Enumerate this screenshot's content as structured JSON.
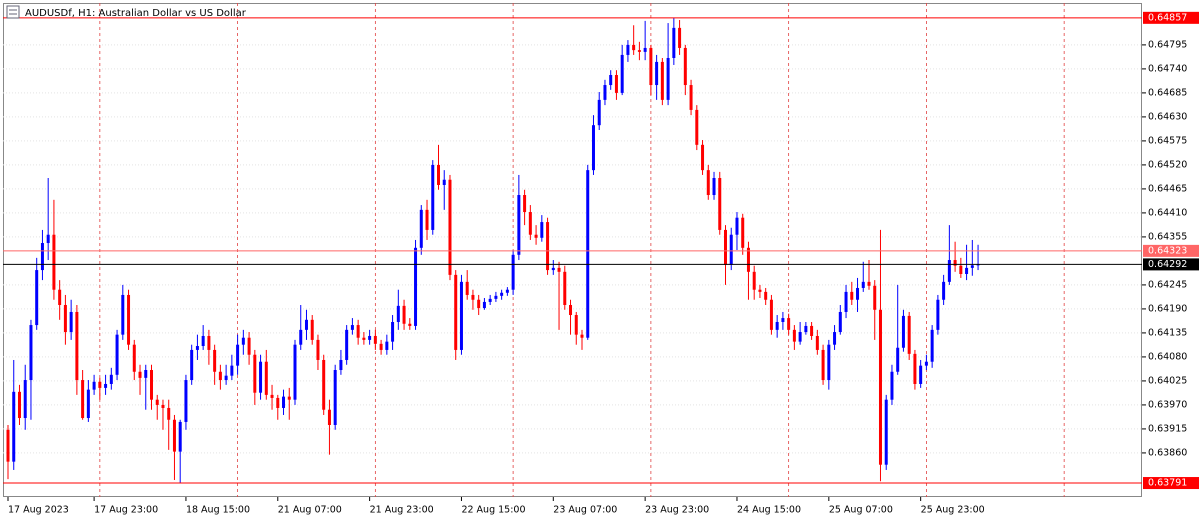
{
  "chart_data": {
    "type": "candlestick",
    "title": "AUDUSDf, H1:  Australian Dollar vs US Dollar",
    "up_color": "#0000ff",
    "down_color": "#ff0000",
    "grid": true,
    "ylim": [
      0.63759,
      0.64891
    ],
    "yticks": [
      {
        "value": 0.6386,
        "label": "0.63860"
      },
      0.63915,
      {
        "value": 0.6397,
        "label": "0.63970"
      },
      0.64025,
      {
        "value": 0.6408,
        "label": "0.64080"
      },
      0.64135,
      {
        "value": 0.6419,
        "label": "0.64190"
      },
      0.64245,
      0.64355,
      {
        "value": 0.6441,
        "label": "0.64410"
      },
      0.64465,
      {
        "value": 0.6452,
        "label": "0.64520"
      },
      0.64575,
      {
        "value": 0.6463,
        "label": "0.64630"
      },
      0.64685,
      {
        "value": 0.6474,
        "label": "0.64740"
      },
      0.64795
    ],
    "price_lines": [
      {
        "value": 0.64857,
        "color": "#ff0000"
      },
      {
        "value": 0.64323,
        "color": "#ff6666"
      },
      {
        "value": 0.64292,
        "color": "#000000"
      },
      {
        "value": 0.63791,
        "color": "#ff0000"
      }
    ],
    "categories": [
      "17 Aug 2023",
      null,
      null,
      null,
      null,
      null,
      null,
      null,
      null,
      null,
      null,
      null,
      null,
      null,
      null,
      "17 Aug 23:00",
      null,
      null,
      null,
      null,
      null,
      null,
      null,
      null,
      null,
      null,
      null,
      null,
      null,
      null,
      null,
      "18 Aug 15:00",
      null,
      null,
      null,
      null,
      null,
      null,
      null,
      null,
      null,
      null,
      null,
      null,
      null,
      null,
      null,
      "21 Aug 07:00",
      null,
      null,
      null,
      null,
      null,
      null,
      null,
      null,
      null,
      null,
      null,
      null,
      null,
      null,
      null,
      "21 Aug 23:00",
      null,
      null,
      null,
      null,
      null,
      null,
      null,
      null,
      null,
      null,
      null,
      null,
      null,
      null,
      null,
      "22 Aug 15:00",
      null,
      null,
      null,
      null,
      null,
      null,
      null,
      null,
      null,
      null,
      null,
      null,
      null,
      null,
      null,
      "23 Aug 07:00",
      null,
      null,
      null,
      null,
      null,
      null,
      null,
      null,
      null,
      null,
      null,
      null,
      null,
      null,
      null,
      "23 Aug 23:00",
      null,
      null,
      null,
      null,
      null,
      null,
      null,
      null,
      null,
      null,
      null,
      null,
      null,
      null,
      null,
      "24 Aug 15:00",
      null,
      null,
      null,
      null,
      null,
      null,
      null,
      null,
      null,
      null,
      null,
      null,
      null,
      null,
      null,
      "25 Aug 07:00",
      null,
      null,
      null,
      null,
      null,
      null,
      null,
      null,
      null,
      null,
      null,
      null,
      null,
      null,
      null,
      "25 Aug 23:00",
      null,
      null,
      null,
      null,
      null,
      null,
      null,
      null,
      null,
      null
    ],
    "open": [
      0.63913,
      0.6384,
      0.64,
      0.6394,
      0.64027,
      0.64153,
      0.64279,
      0.64341,
      0.6436,
      0.64234,
      0.64199,
      0.64137,
      0.64183,
      0.64027,
      0.6394,
      0.64005,
      0.64023,
      0.64009,
      0.64018,
      0.64039,
      0.64131,
      0.64222,
      0.64108,
      0.64046,
      0.64032,
      0.6405,
      0.63982,
      0.6397,
      0.63963,
      0.63936,
      0.63863,
      0.63931,
      0.64027,
      0.64096,
      0.64105,
      0.64128,
      0.64096,
      0.64046,
      0.64027,
      0.64037,
      0.6406,
      0.64108,
      0.64124,
      0.64085,
      0.63998,
      0.64069,
      0.63993,
      0.63986,
      0.63963,
      0.63989,
      0.63982,
      0.64108,
      0.64142,
      0.64165,
      0.64119,
      0.64073,
      0.63959,
      0.63924,
      0.6405,
      0.64073,
      0.64142,
      0.64153,
      0.64124,
      0.64119,
      0.64128,
      0.6411,
      0.64096,
      0.64115,
      0.6416,
      0.64197,
      0.64156,
      0.64151,
      0.6433,
      0.64417,
      0.64371,
      0.6452,
      0.64474,
      0.64486,
      0.64268,
      0.64096,
      0.64252,
      0.64222,
      0.64211,
      0.64192,
      0.64206,
      0.64213,
      0.6422,
      0.64227,
      0.64234,
      0.64314,
      0.64451,
      0.64412,
      0.6436,
      0.64353,
      0.64389,
      0.64279,
      0.64284,
      0.64275,
      0.64199,
      0.64176,
      0.64131,
      0.64124,
      0.64508,
      0.64611,
      0.64669,
      0.64703,
      0.64726,
      0.64685,
      0.64772,
      0.64795,
      0.64783,
      0.64779,
      0.64788,
      0.64703,
      0.64756,
      0.64669,
      0.64765,
      0.64834,
      0.64788,
      0.64703,
      0.64646,
      0.64566,
      0.64508,
      0.64451,
      0.6449,
      0.64371,
      0.64291,
      0.6436,
      0.64399,
      0.6433,
      0.64275,
      0.64234,
      0.64229,
      0.64211,
      0.64142,
      0.6416,
      0.64169,
      0.64142,
      0.64115,
      0.64137,
      0.64151,
      0.64128,
      0.64096,
      0.64027,
      0.64108,
      0.64137,
      0.64183,
      0.64229,
      0.64211,
      0.64238,
      0.64252,
      0.64243,
      0.64188,
      0.63833,
      0.63982,
      0.64046,
      0.64101,
      0.64174,
      0.64087,
      0.64018,
      0.6406,
      0.64069,
      0.64142,
      0.64211,
      0.64252,
      0.64302,
      0.64289,
      0.6427,
      0.64284,
      0.6429
    ],
    "high": [
      0.63924,
      0.64073,
      0.64016,
      0.64062,
      0.64165,
      0.64307,
      0.64371,
      0.6449,
      0.6444,
      0.64256,
      0.64222,
      0.64211,
      0.64199,
      0.6405,
      0.64027,
      0.64039,
      0.64032,
      0.64039,
      0.64055,
      0.64142,
      0.64245,
      0.64234,
      0.64119,
      0.64062,
      0.64062,
      0.64062,
      0.63993,
      0.63982,
      0.63982,
      0.63947,
      0.63936,
      0.64039,
      0.64108,
      0.64131,
      0.64153,
      0.64142,
      0.64108,
      0.64062,
      0.64062,
      0.64085,
      0.64131,
      0.64142,
      0.64137,
      0.64096,
      0.64085,
      0.64096,
      0.64016,
      0.63993,
      0.64005,
      0.64009,
      0.64119,
      0.64199,
      0.64188,
      0.64176,
      0.64131,
      0.64085,
      0.63982,
      0.64062,
      0.64096,
      0.64153,
      0.64169,
      0.64165,
      0.64137,
      0.64142,
      0.64142,
      0.64119,
      0.64131,
      0.64176,
      0.64234,
      0.64211,
      0.64169,
      0.64348,
      0.64428,
      0.6444,
      0.64531,
      0.64566,
      0.64508,
      0.64497,
      0.64279,
      0.64268,
      0.64279,
      0.64234,
      0.64222,
      0.64215,
      0.64222,
      0.64229,
      0.64234,
      0.6424,
      0.64325,
      0.64497,
      0.64463,
      0.64428,
      0.64382,
      0.64405,
      0.64399,
      0.64302,
      0.64298,
      0.64289,
      0.64211,
      0.64183,
      0.64142,
      0.6452,
      0.64634,
      0.64687,
      0.64715,
      0.64737,
      0.64737,
      0.64795,
      0.64806,
      0.6484,
      0.64802,
      0.6485,
      0.64795,
      0.64772,
      0.64765,
      0.64845,
      0.64857,
      0.64852,
      0.64795,
      0.64715,
      0.64657,
      0.64577,
      0.6452,
      0.64504,
      0.64504,
      0.64382,
      0.64376,
      0.64412,
      0.64408,
      0.64344,
      0.64289,
      0.64245,
      0.64238,
      0.64222,
      0.64176,
      0.64183,
      0.64179,
      0.64153,
      0.6416,
      0.6416,
      0.6416,
      0.64142,
      0.64108,
      0.64119,
      0.64153,
      0.64199,
      0.64245,
      0.64252,
      0.64261,
      0.64298,
      0.64302,
      0.64256,
      0.64371,
      0.63993,
      0.64062,
      0.64245,
      0.64188,
      0.64183,
      0.64096,
      0.64073,
      0.64085,
      0.64153,
      0.64222,
      0.64268,
      0.64382,
      0.64344,
      0.64307,
      0.64337,
      0.64348,
      0.64337
    ],
    "low": [
      0.638,
      0.63821,
      0.63924,
      0.63913,
      0.63936,
      0.64142,
      0.64256,
      0.64302,
      0.64211,
      0.64165,
      0.64108,
      0.64119,
      0.63993,
      0.63936,
      0.63931,
      0.63993,
      0.63982,
      0.63993,
      0.64005,
      0.64027,
      0.64119,
      0.64096,
      0.64027,
      0.63993,
      0.63959,
      0.63959,
      0.63936,
      0.63913,
      0.63867,
      0.63798,
      0.63791,
      0.63913,
      0.64016,
      0.64073,
      0.64096,
      0.64062,
      0.64016,
      0.64005,
      0.64016,
      0.64027,
      0.64039,
      0.64085,
      0.64062,
      0.6397,
      0.63982,
      0.63982,
      0.63959,
      0.63936,
      0.63947,
      0.63936,
      0.6397,
      0.64096,
      0.64119,
      0.64108,
      0.6405,
      0.63947,
      0.63856,
      0.63913,
      0.64039,
      0.64062,
      0.64131,
      0.64108,
      0.64108,
      0.64108,
      0.64096,
      0.64085,
      0.64085,
      0.64096,
      0.64142,
      0.64142,
      0.64142,
      0.64142,
      0.64314,
      0.64348,
      0.6436,
      0.64463,
      0.64417,
      0.64256,
      0.64073,
      0.64085,
      0.64211,
      0.64188,
      0.64176,
      0.64188,
      0.64199,
      0.64206,
      0.64211,
      0.6422,
      0.64222,
      0.64302,
      0.64382,
      0.64348,
      0.64337,
      0.64344,
      0.64268,
      0.64268,
      0.64142,
      0.64188,
      0.64131,
      0.64108,
      0.64096,
      0.64119,
      0.64497,
      0.646,
      0.64657,
      0.64692,
      0.64669,
      0.6468,
      0.64756,
      0.64772,
      0.6476,
      0.6476,
      0.6468,
      0.64669,
      0.64657,
      0.64657,
      0.64749,
      0.64772,
      0.6468,
      0.64634,
      0.64554,
      0.64497,
      0.6444,
      0.6444,
      0.6436,
      0.64245,
      0.64279,
      0.64325,
      0.64314,
      0.64211,
      0.64211,
      0.64215,
      0.64199,
      0.64131,
      0.64124,
      0.64142,
      0.64131,
      0.64096,
      0.64108,
      0.64131,
      0.64119,
      0.64085,
      0.64016,
      0.64005,
      0.64096,
      0.64131,
      0.64169,
      0.64199,
      0.64183,
      0.64229,
      0.64234,
      0.64119,
      0.63795,
      0.63821,
      0.6397,
      0.64039,
      0.64092,
      0.64073,
      0.64005,
      0.64009,
      0.6405,
      0.64055,
      0.64131,
      0.64199,
      0.64245,
      0.64275,
      0.64261,
      0.64256,
      0.64266,
      0.64279
    ],
    "close": [
      0.6384,
      0.64,
      0.6394,
      0.64027,
      0.64153,
      0.64279,
      0.64341,
      0.6436,
      0.64234,
      0.64199,
      0.64137,
      0.64183,
      0.64027,
      0.6394,
      0.64005,
      0.64023,
      0.64009,
      0.64018,
      0.64039,
      0.64131,
      0.64222,
      0.64108,
      0.64046,
      0.64032,
      0.6405,
      0.63982,
      0.6397,
      0.63963,
      0.63936,
      0.63863,
      0.63931,
      0.64027,
      0.64096,
      0.64105,
      0.64128,
      0.64096,
      0.64046,
      0.64027,
      0.64037,
      0.6406,
      0.64108,
      0.64124,
      0.64085,
      0.63998,
      0.64069,
      0.63993,
      0.63986,
      0.63963,
      0.63989,
      0.63982,
      0.64108,
      0.64142,
      0.64165,
      0.64119,
      0.64073,
      0.63959,
      0.63924,
      0.6405,
      0.64073,
      0.64142,
      0.64153,
      0.64124,
      0.64119,
      0.64128,
      0.6411,
      0.64096,
      0.64115,
      0.6416,
      0.64197,
      0.64156,
      0.64151,
      0.6433,
      0.64417,
      0.64371,
      0.6452,
      0.64474,
      0.64486,
      0.64268,
      0.64096,
      0.64252,
      0.64222,
      0.64211,
      0.64192,
      0.64206,
      0.64213,
      0.6422,
      0.64227,
      0.64234,
      0.64314,
      0.64451,
      0.64412,
      0.6436,
      0.64353,
      0.64389,
      0.64279,
      0.64284,
      0.64275,
      0.64199,
      0.64176,
      0.64131,
      0.64124,
      0.64508,
      0.64611,
      0.64669,
      0.64703,
      0.64726,
      0.64685,
      0.64772,
      0.64795,
      0.64783,
      0.64779,
      0.64788,
      0.64703,
      0.64756,
      0.64669,
      0.64765,
      0.64834,
      0.64788,
      0.64703,
      0.64646,
      0.64566,
      0.64508,
      0.64451,
      0.6449,
      0.64371,
      0.64291,
      0.6436,
      0.64399,
      0.6433,
      0.64275,
      0.64234,
      0.64229,
      0.64211,
      0.64142,
      0.6416,
      0.64169,
      0.64142,
      0.64115,
      0.64137,
      0.64151,
      0.64128,
      0.64096,
      0.64027,
      0.64108,
      0.64137,
      0.64183,
      0.64229,
      0.64211,
      0.64238,
      0.64252,
      0.64243,
      0.64188,
      0.63833,
      0.63982,
      0.64046,
      0.64101,
      0.64174,
      0.64087,
      0.64018,
      0.6406,
      0.64069,
      0.64142,
      0.64211,
      0.64252,
      0.64302,
      0.64289,
      0.6427,
      0.64284,
      0.6429,
      0.64292
    ]
  }
}
